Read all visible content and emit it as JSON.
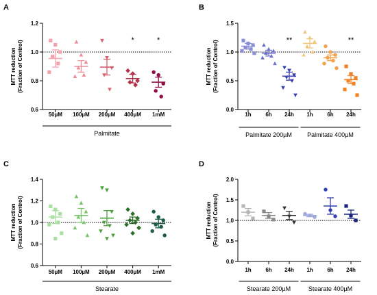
{
  "chart_data": [
    {
      "panel": "A",
      "type": "scatter",
      "ylabel": "MTT reduction\n(Fraction of Control)",
      "ylim": [
        0.6,
        1.2
      ],
      "yticks": [
        "0.6",
        "0.8",
        "1.0",
        "1.2"
      ],
      "yticks_values": [
        0.6,
        0.8,
        1.0,
        1.2
      ],
      "reference_line": 1.0,
      "categories": [
        "50µM",
        "100µM",
        "200µM",
        "400µM",
        "1mM"
      ],
      "group_label": "Palmitate",
      "marker_shapes": [
        "square",
        "triangle",
        "triangle-down",
        "diamond",
        "circle"
      ],
      "colors": [
        "#f4a3ad",
        "#ee8e98",
        "#d9606c",
        "#b3314a",
        "#8f0f46"
      ],
      "series": [
        {
          "points": [
            1.08,
            1.05,
            1.0,
            0.97,
            0.92,
            0.86
          ],
          "mean": 0.955,
          "sem": 0.06,
          "sig": ""
        },
        {
          "points": [
            1.07,
            0.98,
            0.93,
            0.89,
            0.84,
            0.83
          ],
          "mean": 0.9,
          "sem": 0.04,
          "sig": ""
        },
        {
          "points": [
            1.08,
            0.96,
            0.89,
            0.84,
            0.74
          ],
          "mean": 0.895,
          "sem": 0.055,
          "sig": ""
        },
        {
          "points": [
            0.87,
            0.85,
            0.8,
            0.79,
            0.77
          ],
          "mean": 0.815,
          "sem": 0.03,
          "sig": "*"
        },
        {
          "points": [
            0.86,
            0.84,
            0.78,
            0.73,
            0.69
          ],
          "mean": 0.79,
          "sem": 0.035,
          "sig": "*"
        }
      ]
    },
    {
      "panel": "B",
      "type": "scatter",
      "ylabel": "MTT reduction\n(Fraction of Control)",
      "ylim": [
        0.0,
        1.5
      ],
      "yticks": [
        "0.0",
        "0.5",
        "1.0",
        "1.5"
      ],
      "yticks_values": [
        0.0,
        0.5,
        1.0,
        1.5
      ],
      "reference_line": 1.0,
      "categories": [
        "1h",
        "6h",
        "24h",
        "1h",
        "6h",
        "24h"
      ],
      "groups": [
        {
          "label": "Palmitate 200µM",
          "span": [
            0,
            2
          ]
        },
        {
          "label": "Palmitate 400µM",
          "span": [
            3,
            5
          ]
        }
      ],
      "marker_shapes": [
        "square",
        "triangle",
        "triangle-down",
        "triangle",
        "circle",
        "square"
      ],
      "colors": [
        "#8b8fd6",
        "#6f72cc",
        "#3a3fb3",
        "#f5c77e",
        "#f2a24b",
        "#ef8222"
      ],
      "series": [
        {
          "points": [
            1.2,
            1.15,
            1.12,
            1.08,
            1.05,
            1.02,
            0.98
          ],
          "mean": 1.1,
          "sem": 0.05,
          "sig": ""
        },
        {
          "points": [
            1.12,
            1.05,
            1.02,
            0.98,
            0.93,
            0.9,
            0.8
          ],
          "mean": 0.98,
          "sem": 0.05,
          "sig": ""
        },
        {
          "points": [
            0.73,
            0.68,
            0.6,
            0.56,
            0.5,
            0.38,
            0.25
          ],
          "mean": 0.58,
          "sem": 0.07,
          "sig": "**"
        },
        {
          "points": [
            1.35,
            1.25,
            1.18,
            1.1,
            1.0,
            0.95
          ],
          "mean": 1.15,
          "sem": 0.08,
          "sig": ""
        },
        {
          "points": [
            1.1,
            1.0,
            0.95,
            0.9,
            0.85,
            0.8,
            0.72
          ],
          "mean": 0.9,
          "sem": 0.05,
          "sig": ""
        },
        {
          "points": [
            0.75,
            0.62,
            0.55,
            0.5,
            0.45,
            0.35,
            0.25
          ],
          "mean": 0.52,
          "sem": 0.07,
          "sig": "**"
        }
      ]
    },
    {
      "panel": "C",
      "type": "scatter",
      "ylabel": "MTT reduction\n(Fraction of Control)",
      "ylim": [
        0.6,
        1.4
      ],
      "yticks": [
        "0.6",
        "0.8",
        "1.0",
        "1.2",
        "1.4"
      ],
      "yticks_values": [
        0.6,
        0.8,
        1.0,
        1.2,
        1.4
      ],
      "reference_line": 1.0,
      "categories": [
        "50µM",
        "100µM",
        "200µM",
        "400µM",
        "1mM"
      ],
      "group_label": "Stearate",
      "marker_shapes": [
        "square",
        "triangle",
        "triangle-down",
        "diamond",
        "circle"
      ],
      "colors": [
        "#a9e0a1",
        "#79c46b",
        "#4f9e3e",
        "#2c6e2a",
        "#1e5c4a"
      ],
      "series": [
        {
          "points": [
            1.15,
            1.12,
            1.08,
            1.05,
            1.0,
            0.98,
            0.9,
            0.85
          ],
          "mean": 1.05,
          "sem": 0.06,
          "sig": ""
        },
        {
          "points": [
            1.24,
            1.18,
            1.1,
            1.05,
            1.0,
            0.95,
            0.88
          ],
          "mean": 1.065,
          "sem": 0.065,
          "sig": ""
        },
        {
          "points": [
            1.32,
            1.3,
            1.1,
            1.0,
            0.97,
            0.92,
            0.88,
            0.85
          ],
          "mean": 1.04,
          "sem": 0.07,
          "sig": ""
        },
        {
          "points": [
            1.12,
            1.08,
            1.04,
            1.02,
            1.0,
            0.98,
            0.95,
            0.9
          ],
          "mean": 1.02,
          "sem": 0.03,
          "sig": ""
        },
        {
          "points": [
            1.1,
            1.05,
            1.02,
            0.98,
            0.96,
            0.92,
            0.88
          ],
          "mean": 0.99,
          "sem": 0.04,
          "sig": ""
        }
      ]
    },
    {
      "panel": "D",
      "type": "scatter",
      "ylabel": "MTT reduction\n(Fraction of Control)",
      "ylim": [
        0.0,
        2.0
      ],
      "yticks": [
        "0.0",
        "0.5",
        "1.0",
        "1.5",
        "2.0"
      ],
      "yticks_values": [
        0.0,
        0.5,
        1.0,
        1.5,
        2.0
      ],
      "reference_line": 1.0,
      "categories": [
        "1h",
        "6h",
        "24h",
        "1h",
        "6h",
        "24h"
      ],
      "groups": [
        {
          "label": "Stearate 200µM",
          "span": [
            0,
            2
          ]
        },
        {
          "label": "Stearate 400µM",
          "span": [
            3,
            5
          ]
        }
      ],
      "marker_shapes": [
        "square",
        "square",
        "triangle-down",
        "circle",
        "circle",
        "square"
      ],
      "colors": [
        "#b5b5b5",
        "#8a8a8a",
        "#333333",
        "#9fa9dc",
        "#2f3db0",
        "#1a237e"
      ],
      "series": [
        {
          "points": [
            1.35,
            1.2,
            1.05
          ],
          "mean": 1.2,
          "sem": 0.09,
          "sig": ""
        },
        {
          "points": [
            1.22,
            1.1,
            1.02
          ],
          "mean": 1.12,
          "sem": 0.07,
          "sig": ""
        },
        {
          "points": [
            1.3,
            1.1,
            0.95
          ],
          "mean": 1.12,
          "sem": 0.1,
          "sig": ""
        },
        {
          "points": [
            1.16,
            1.12,
            1.08
          ],
          "mean": 1.12,
          "sem": 0.03,
          "sig": ""
        },
        {
          "points": [
            1.75,
            1.25,
            1.1
          ],
          "mean": 1.35,
          "sem": 0.2,
          "sig": ""
        },
        {
          "points": [
            1.35,
            1.12,
            1.0
          ],
          "mean": 1.15,
          "sem": 0.1,
          "sig": ""
        }
      ]
    }
  ]
}
